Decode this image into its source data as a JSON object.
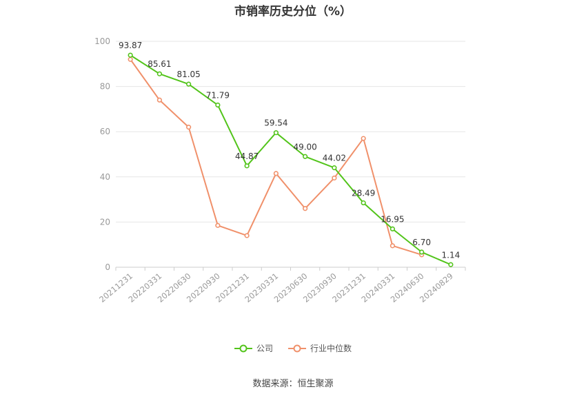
{
  "title": "市销率历史分位（%）",
  "source": "数据来源：恒生聚源",
  "colors": {
    "company": "#52c41a",
    "industry": "#f0906a",
    "grid": "#e6e6e6",
    "axis": "#999999"
  },
  "chart_data": {
    "type": "line",
    "categories": [
      "20211231",
      "20220331",
      "20220630",
      "20220930",
      "20221231",
      "20230331",
      "20230630",
      "20230930",
      "20231231",
      "20240331",
      "20240630",
      "20240829"
    ],
    "ylim": [
      0,
      100
    ],
    "yticks": [
      0,
      20,
      40,
      60,
      80,
      100
    ],
    "grid": true,
    "legend_position": "bottom",
    "series": [
      {
        "name": "公司",
        "values": [
          93.87,
          85.61,
          81.05,
          71.79,
          44.87,
          59.54,
          49.0,
          44.02,
          28.49,
          16.95,
          6.7,
          1.14
        ],
        "labels": [
          "93.87",
          "85.61",
          "81.05",
          "71.79",
          "44.87",
          "59.54",
          "49.00",
          "44.02",
          "28.49",
          "16.95",
          "6.70",
          "1.14"
        ]
      },
      {
        "name": "行业中位数",
        "values": [
          92,
          74,
          62,
          18.5,
          14,
          41.5,
          26,
          39.5,
          57,
          9.5,
          5.5,
          null
        ]
      }
    ]
  }
}
